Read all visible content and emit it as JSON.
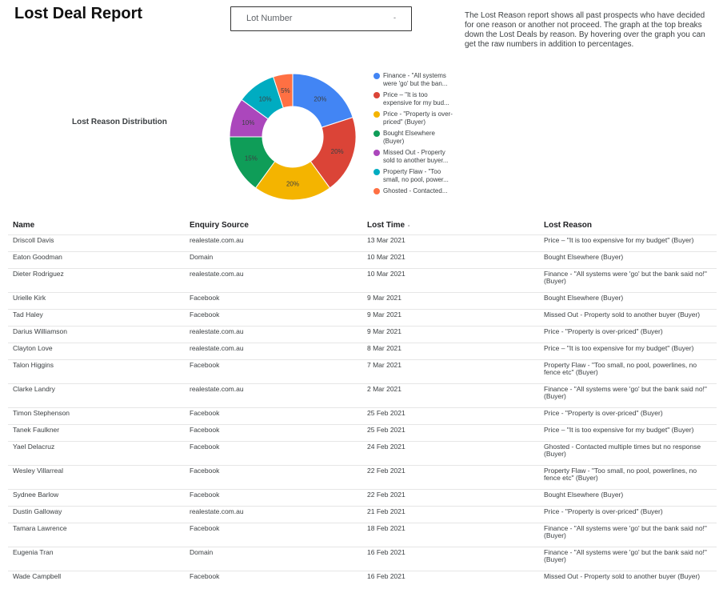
{
  "header": {
    "title": "Lost Deal Report",
    "filter_label": "Lot Number",
    "filter_caret": "-",
    "description": "The Lost Reason report shows all past prospects who have decided for one reason or another not proceed. The graph at the top breaks down the Lost Deals by reason. By hovering over the graph you can get the raw numbers in addition to percentages."
  },
  "chart": {
    "title": "Lost Reason Distribution"
  },
  "chart_data": {
    "type": "pie",
    "donut": true,
    "slices": [
      {
        "label": "Finance - \"All systems were 'go' but the ban...",
        "value": 20,
        "display": "20%",
        "color": "#4285f4"
      },
      {
        "label": "Price – \"It is too expensive for my bud...",
        "value": 20,
        "display": "20%",
        "color": "#db4437"
      },
      {
        "label": "Price - \"Property is over-priced\" (Buyer)",
        "value": 20,
        "display": "20%",
        "color": "#f4b400"
      },
      {
        "label": "Bought Elsewhere (Buyer)",
        "value": 15,
        "display": "15%",
        "color": "#0f9d58"
      },
      {
        "label": "Missed Out - Property sold to another buyer...",
        "value": 10,
        "display": "10%",
        "color": "#ab47bc"
      },
      {
        "label": "Property Flaw - \"Too small, no pool, power...",
        "value": 10,
        "display": "10%",
        "color": "#00acc1"
      },
      {
        "label": "Ghosted - Contacted...",
        "value": 5,
        "display": "5%",
        "color": "#ff7043"
      }
    ]
  },
  "table": {
    "headers": [
      "Name",
      "Enquiry Source",
      "Lost Time",
      "Lost Reason"
    ],
    "sort_indicator": "-",
    "rows": [
      [
        "Driscoll Davis",
        "realestate.com.au",
        "13 Mar 2021",
        "Price – \"It is too expensive for my budget\" (Buyer)"
      ],
      [
        "Eaton Goodman",
        "Domain",
        "10 Mar 2021",
        "Bought Elsewhere (Buyer)"
      ],
      [
        "Dieter Rodriguez",
        "realestate.com.au",
        "10 Mar 2021",
        "Finance - \"All systems were 'go' but the bank said no!\" (Buyer)"
      ],
      [
        "Urielle Kirk",
        "Facebook",
        "9 Mar 2021",
        "Bought Elsewhere (Buyer)"
      ],
      [
        "Tad Haley",
        "Facebook",
        "9 Mar 2021",
        "Missed Out - Property sold to another buyer (Buyer)"
      ],
      [
        "Darius Williamson",
        "realestate.com.au",
        "9 Mar 2021",
        "Price - \"Property is over-priced\" (Buyer)"
      ],
      [
        "Clayton Love",
        "realestate.com.au",
        "8 Mar 2021",
        "Price – \"It is too expensive for my budget\" (Buyer)"
      ],
      [
        "Talon Higgins",
        "Facebook",
        "7 Mar 2021",
        "Property Flaw - \"Too small, no pool, powerlines, no fence etc\" (Buyer)"
      ],
      [
        "Clarke Landry",
        "realestate.com.au",
        "2 Mar 2021",
        "Finance - \"All systems were 'go' but the bank said no!\" (Buyer)"
      ],
      [
        "Timon Stephenson",
        "Facebook",
        "25 Feb 2021",
        "Price - \"Property is over-priced\" (Buyer)"
      ],
      [
        "Tanek Faulkner",
        "Facebook",
        "25 Feb 2021",
        "Price – \"It is too expensive for my budget\" (Buyer)"
      ],
      [
        "Yael Delacruz",
        "Facebook",
        "24 Feb 2021",
        "Ghosted - Contacted multiple times but no response (Buyer)"
      ],
      [
        "Wesley Villarreal",
        "Facebook",
        "22 Feb 2021",
        "Property Flaw - \"Too small, no pool, powerlines, no fence etc\" (Buyer)"
      ],
      [
        "Sydnee Barlow",
        "Facebook",
        "22 Feb 2021",
        "Bought Elsewhere (Buyer)"
      ],
      [
        "Dustin Galloway",
        "realestate.com.au",
        "21 Feb 2021",
        "Price - \"Property is over-priced\" (Buyer)"
      ],
      [
        "Tamara Lawrence",
        "Facebook",
        "18 Feb 2021",
        "Finance - \"All systems were 'go' but the bank said no!\" (Buyer)"
      ],
      [
        "Eugenia Tran",
        "Domain",
        "16 Feb 2021",
        "Finance - \"All systems were 'go' but the bank said no!\" (Buyer)"
      ],
      [
        "Wade Campbell",
        "Facebook",
        "16 Feb 2021",
        "Missed Out - Property sold to another buyer (Buyer)"
      ]
    ]
  }
}
